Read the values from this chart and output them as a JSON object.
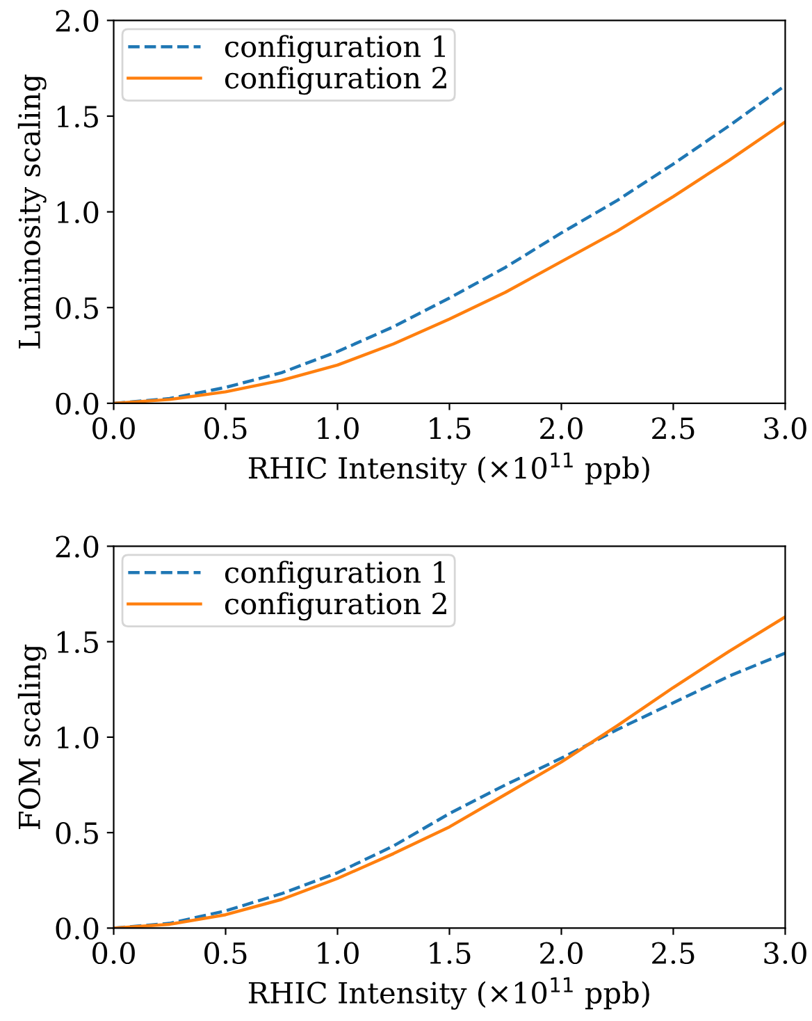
{
  "chart_data": [
    {
      "type": "line",
      "xlabel": "RHIC Intensity (×10$^{11}$ ppb)",
      "ylabel": "Luminosity scaling",
      "x": [
        0,
        0.25,
        0.5,
        0.75,
        1,
        1.25,
        1.5,
        1.75,
        2,
        2.25,
        2.5,
        2.75,
        3
      ],
      "series": [
        {
          "name": "configuration 1",
          "color": "#1f77b4",
          "line_style": "dashed",
          "values": [
            0,
            0.025,
            0.083,
            0.16,
            0.27,
            0.4,
            0.55,
            0.71,
            0.89,
            1.06,
            1.25,
            1.45,
            1.66
          ]
        },
        {
          "name": "configuration 2",
          "color": "#ff7f0e",
          "line_style": "solid",
          "values": [
            0,
            0.02,
            0.06,
            0.12,
            0.2,
            0.31,
            0.44,
            0.58,
            0.74,
            0.9,
            1.08,
            1.27,
            1.47
          ]
        }
      ],
      "xlim": [
        0,
        3
      ],
      "ylim": [
        0,
        2
      ],
      "xticks": [
        {
          "value": 0,
          "label": "0.0"
        },
        {
          "value": 0.5,
          "label": "0.5"
        },
        {
          "value": 1,
          "label": "1.0"
        },
        {
          "value": 1.5,
          "label": "1.5"
        },
        {
          "value": 2,
          "label": "2.0"
        },
        {
          "value": 2.5,
          "label": "2.5"
        },
        {
          "value": 3,
          "label": "3.0"
        }
      ],
      "yticks": [
        {
          "value": 0,
          "label": "0.0"
        },
        {
          "value": 0.5,
          "label": "0.5"
        },
        {
          "value": 1,
          "label": "1.0"
        },
        {
          "value": 1.5,
          "label": "1.5"
        },
        {
          "value": 2,
          "label": "2.0"
        }
      ],
      "legend": "top left",
      "grid": false,
      "marker": "none"
    },
    {
      "type": "line",
      "xlabel": "RHIC Intensity (×10$^{11}$ ppb)",
      "ylabel": "FOM scaling",
      "x": [
        0,
        0.25,
        0.5,
        0.75,
        1,
        1.25,
        1.5,
        1.75,
        2,
        2.25,
        2.5,
        2.75,
        3
      ],
      "series": [
        {
          "name": "configuration 1",
          "color": "#1f77b4",
          "line_style": "dashed",
          "values": [
            0,
            0.025,
            0.09,
            0.18,
            0.29,
            0.43,
            0.6,
            0.75,
            0.89,
            1.04,
            1.18,
            1.32,
            1.44
          ]
        },
        {
          "name": "configuration 2",
          "color": "#ff7f0e",
          "line_style": "solid",
          "values": [
            0,
            0.02,
            0.07,
            0.15,
            0.26,
            0.39,
            0.53,
            0.7,
            0.87,
            1.06,
            1.26,
            1.45,
            1.63
          ]
        }
      ],
      "xlim": [
        0,
        3
      ],
      "ylim": [
        0,
        2
      ],
      "xticks": [
        {
          "value": 0,
          "label": "0.0"
        },
        {
          "value": 0.5,
          "label": "0.5"
        },
        {
          "value": 1,
          "label": "1.0"
        },
        {
          "value": 1.5,
          "label": "1.5"
        },
        {
          "value": 2,
          "label": "2.0"
        },
        {
          "value": 2.5,
          "label": "2.5"
        },
        {
          "value": 3,
          "label": "3.0"
        }
      ],
      "yticks": [
        {
          "value": 0,
          "label": "0.0"
        },
        {
          "value": 0.5,
          "label": "0.5"
        },
        {
          "value": 1,
          "label": "1.0"
        },
        {
          "value": 1.5,
          "label": "1.5"
        },
        {
          "value": 2,
          "label": "2.0"
        }
      ],
      "legend": "top left",
      "grid": false,
      "marker": "none"
    }
  ]
}
